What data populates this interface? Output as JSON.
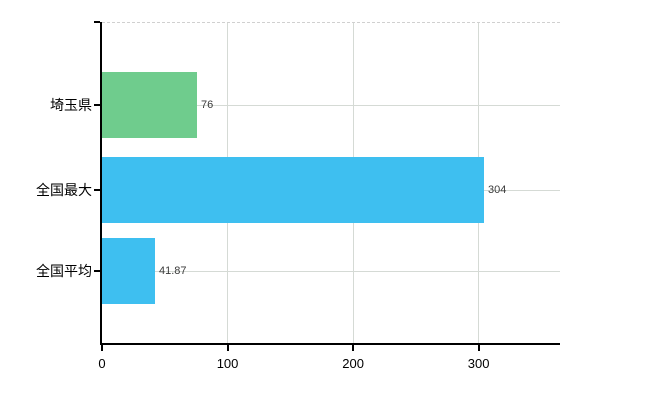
{
  "page": {
    "background": "#ffffff"
  },
  "chart_data": {
    "type": "bar",
    "orientation": "horizontal",
    "title": "",
    "xlabel": "",
    "ylabel": "",
    "categories": [
      "埼玉県",
      "全国最大",
      "全国平均"
    ],
    "values": [
      76,
      304,
      41.87
    ],
    "value_labels": [
      "76",
      "304",
      "41.87"
    ],
    "bar_colors": [
      "#6fcc8d",
      "#3ebff0",
      "#3ebff0"
    ],
    "xlim": [
      0,
      364.8
    ],
    "x_ticks": [
      0,
      100,
      200,
      300
    ],
    "x_tick_labels": [
      "0",
      "100",
      "200",
      "300"
    ],
    "grid": true,
    "legend": false,
    "style": {
      "axis_color": "#000000",
      "grid_color": "#d5dad5",
      "top_border_color": "#d0d0d0",
      "value_label_color": "#3a3a3a",
      "tick_label_color": "#000000",
      "category_label_color": "#000000"
    }
  }
}
